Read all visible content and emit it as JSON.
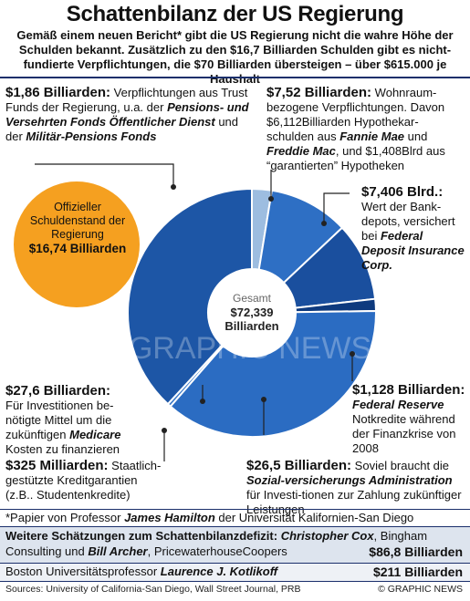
{
  "header": {
    "title": "Schattenbilanz der US Regierung",
    "subtitle": "Gemäß einem neuen Bericht* gibt die US Regierung nicht die wahre Höhe der Schulden bekannt. Zusätzlich zu den $16,7 Billiarden Schulden gibt es nicht-fundierte Verpflichtungen, die $70 Billiarden übersteigen – über $615.000 je Haushalt"
  },
  "chart_data": {
    "type": "pie",
    "title": "",
    "center_label": "Gesamt",
    "center_value": "$72,339",
    "center_unit": "Billiarden",
    "unit": "Billiarden $",
    "slices": [
      {
        "label": "Trust Funds",
        "value": 1.86,
        "color": "#9dbde0"
      },
      {
        "label": "Wohnraumbezogene Verpflichtungen",
        "value": 7.52,
        "color": "#2e6fc4"
      },
      {
        "label": "Bankdepots (Federal Deposit Insurance Corp.)",
        "value": 7.406,
        "color": "#1a4f9e"
      },
      {
        "label": "Federal Reserve",
        "value": 1.128,
        "color": "#0e3a7e"
      },
      {
        "label": "Sozialversicherungs Administration",
        "value": 26.5,
        "color": "#2b6cc2"
      },
      {
        "label": "Staatlich-gestützte Kreditgarantien",
        "value": 0.325,
        "color": "#3a78c8"
      },
      {
        "label": "Investitionen Medicare",
        "value": 27.6,
        "color": "#1d56a6"
      }
    ],
    "official_debt": {
      "label": "Offizieller Schuldenstand der Regierung",
      "value": 16.74,
      "value_label": "$16,74 Billiarden",
      "color": "#f5a020"
    }
  },
  "callouts": {
    "trust": {
      "amount": "$1,86 Billiarden:",
      "t1": " Verpflichtungen aus Trust Funds der Regierung, u.a. der ",
      "b1": "Pensions- und Versehrten Fonds Öffentlicher Dienst",
      "t2": " und der ",
      "b2": "Militär-Pensions Fonds"
    },
    "housing": {
      "amount": "$7,52 Billiarden:",
      "t1": " Wohnraum-bezogene Verpflichtungen. Davon $6,112Billiarden Hypothekar-schulden aus ",
      "b1": "Fannie Mae",
      "t2": " und ",
      "b2": "Freddie Mac",
      "t3": ", und $1,408Blrd aus “garantierten” Hypotheken"
    },
    "fdic": {
      "amount": "$7,406 Blrd.:",
      "t1": "Wert der Bank-depots, versichert bei ",
      "b1": "Federal Deposit Insurance Corp."
    },
    "fed": {
      "amount": "$1,128 Billiarden:",
      "b1": "Federal Reserve",
      "t1": " Notkredite während der Finanzkrise von 2008"
    },
    "medicare": {
      "amount": "$27,6 Billiarden:",
      "t1": "Für Investitionen be-nötigte Mittel um die zukünftigen ",
      "b1": "Medicare",
      "t2": " Kosten zu finanzieren"
    },
    "credit": {
      "amount": "$325 Milliarden:",
      "t1": " Staatlich-gestützte Kreditgarantien (z.B.. Studentenkredite)"
    },
    "social": {
      "amount": "$26,5 Billiarden:",
      "t1": " Soviel braucht die ",
      "b1": "Sozial-versicherungs Administration",
      "t2": " für Investi-tionen zur Zahlung zukünftiger Leistungen"
    }
  },
  "official": {
    "line1": "Offizieller",
    "line2": "Schuldenstand der",
    "line3": "Regierung",
    "amount": "$16,74 Billiarden"
  },
  "footnote": {
    "t1": "*Papier von Professor ",
    "b1": "James Hamilton",
    "t2": " der Universität Kalifornien-San Diego"
  },
  "estimates": {
    "heading": "Weitere Schätzungen zum Schattenbilanzdefizit:",
    "cox_name": "Christopher Cox",
    "cox_rest": ", Bingham",
    "line2_t1": "Consulting und ",
    "archer": "Bill Archer",
    "line2_t2": ", PricewaterhouseCoopers",
    "amount1": "$86,8 Billiarden",
    "boston_t1": "Boston Universitätsprofessor ",
    "kotlikoff": "Laurence J. Kotlikoff",
    "amount2": "$211 Billiarden"
  },
  "footer": {
    "sources": "Sources: University of California-San Diego, Wall Street Journal, PRB",
    "credit": "© GRAPHIC NEWS",
    "watermark": "GRAPHIC NEWS"
  }
}
